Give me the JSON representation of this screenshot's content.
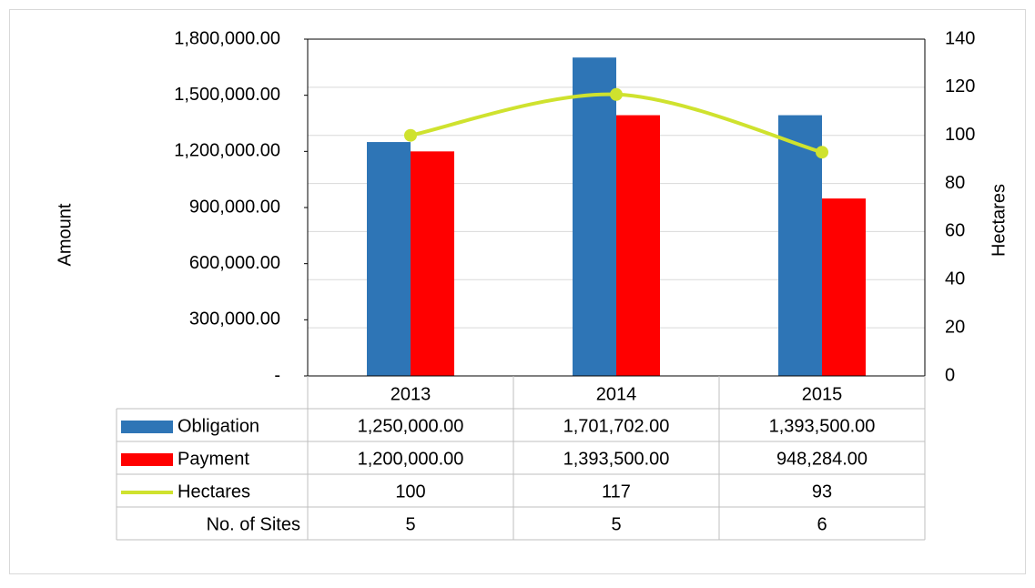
{
  "chart_data": {
    "type": "bar",
    "categories": [
      "2013",
      "2014",
      "2015"
    ],
    "series": [
      {
        "name": "Obligation",
        "color": "#2e75b6",
        "values": [
          1250000,
          1701702,
          1393500
        ],
        "value_labels": [
          "1,250,000.00",
          "1,701,702.00",
          "1,393,500.00"
        ]
      },
      {
        "name": "Payment",
        "color": "#ff0000",
        "values": [
          1200000,
          1393500,
          948284
        ],
        "value_labels": [
          "1,200,000.00",
          "1,393,500.00",
          "948,284.00"
        ]
      },
      {
        "name": "Hectares",
        "type": "line",
        "axis": "y2",
        "color": "#cfe22e",
        "values": [
          100,
          117,
          93
        ]
      }
    ],
    "table_rows": [
      {
        "name": "No. of Sites",
        "values": [
          5,
          5,
          6
        ]
      }
    ],
    "ylabel": "Amount",
    "y2label": "Hectares",
    "ylim": [
      0,
      1800000
    ],
    "yticks": [
      {
        "value": 0,
        "label": "-"
      },
      {
        "value": 300000,
        "label": "300,000.00"
      },
      {
        "value": 600000,
        "label": "600,000.00"
      },
      {
        "value": 900000,
        "label": "900,000.00"
      },
      {
        "value": 1200000,
        "label": "1,200,000.00"
      },
      {
        "value": 1500000,
        "label": "1,500,000.00"
      },
      {
        "value": 1800000,
        "label": "1,800,000.00"
      }
    ],
    "y2lim": [
      0,
      140
    ],
    "y2ticks": [
      0,
      20,
      40,
      60,
      80,
      100,
      120,
      140
    ],
    "grid": true
  }
}
